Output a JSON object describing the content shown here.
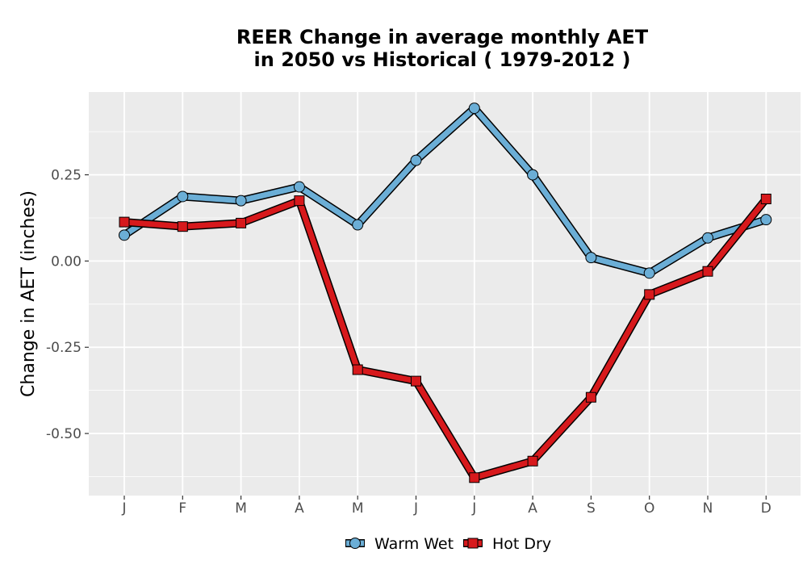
{
  "chart_data": {
    "type": "line",
    "title_line1": "REER  Change in average monthly AET",
    "title_line2": "in 2050 vs Historical ( 1979-2012 )",
    "xlabel": "",
    "ylabel": "Change in AET (inches)",
    "categories": [
      "J",
      "F",
      "M",
      "A",
      "M",
      "J",
      "J",
      "A",
      "S",
      "O",
      "N",
      "D"
    ],
    "yticks": [
      {
        "value": 0.25,
        "label": "0.25"
      },
      {
        "value": 0.0,
        "label": "0.00"
      },
      {
        "value": -0.25,
        "label": "-0.25"
      },
      {
        "value": -0.5,
        "label": "-0.50"
      }
    ],
    "ylim": [
      -0.68,
      0.49
    ],
    "grid": true,
    "legend_position": "bottom",
    "background_color": "#ebebeb",
    "series": [
      {
        "name": "Warm Wet",
        "marker": "circle",
        "color": "#6baed6",
        "values": [
          0.075,
          0.187,
          0.175,
          0.215,
          0.105,
          0.292,
          0.443,
          0.25,
          0.01,
          -0.035,
          0.067,
          0.12
        ]
      },
      {
        "name": "Hot Dry",
        "marker": "square",
        "color": "#d7191c",
        "values": [
          0.113,
          0.1,
          0.11,
          0.175,
          -0.315,
          -0.348,
          -0.628,
          -0.58,
          -0.395,
          -0.097,
          -0.03,
          0.18
        ]
      }
    ]
  }
}
